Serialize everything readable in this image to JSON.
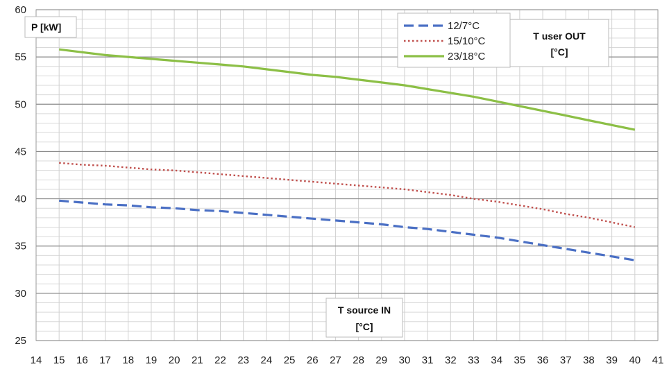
{
  "chart_data": {
    "type": "line",
    "ylabel": "P [kW]",
    "xlabel_line1": "T source IN",
    "xlabel_line2": "[°C]",
    "legend_title_line1": "T user OUT",
    "legend_title_line2": "[°C]",
    "legend_position": "top-right",
    "grid": true,
    "xlim": [
      14,
      41
    ],
    "ylim": [
      25,
      60
    ],
    "x_ticks": [
      14,
      15,
      16,
      17,
      18,
      19,
      20,
      21,
      22,
      23,
      24,
      25,
      26,
      27,
      28,
      29,
      30,
      31,
      32,
      33,
      34,
      35,
      36,
      37,
      38,
      39,
      40,
      41
    ],
    "y_ticks": [
      25,
      30,
      35,
      40,
      45,
      50,
      55,
      60
    ],
    "x": [
      15,
      16,
      17,
      18,
      19,
      20,
      21,
      22,
      23,
      24,
      25,
      26,
      27,
      28,
      29,
      30,
      31,
      32,
      33,
      34,
      35,
      36,
      37,
      38,
      39,
      40
    ],
    "series": [
      {
        "name": "12/7°C",
        "color": "#4a6fc4",
        "style": "dashed",
        "values": [
          39.8,
          39.6,
          39.4,
          39.3,
          39.1,
          39.0,
          38.8,
          38.7,
          38.5,
          38.3,
          38.1,
          37.9,
          37.7,
          37.5,
          37.3,
          37.0,
          36.8,
          36.5,
          36.2,
          35.9,
          35.5,
          35.1,
          34.7,
          34.3,
          33.9,
          33.5
        ]
      },
      {
        "name": "15/10°C",
        "color": "#c0504d",
        "style": "dotted",
        "values": [
          43.8,
          43.6,
          43.5,
          43.3,
          43.1,
          43.0,
          42.8,
          42.6,
          42.4,
          42.2,
          42.0,
          41.8,
          41.6,
          41.4,
          41.2,
          41.0,
          40.7,
          40.4,
          40.0,
          39.7,
          39.3,
          38.9,
          38.4,
          38.0,
          37.5,
          37.0
        ]
      },
      {
        "name": "23/18°C",
        "color": "#8cbf46",
        "style": "solid",
        "values": [
          55.8,
          55.5,
          55.2,
          55.0,
          54.8,
          54.6,
          54.4,
          54.2,
          54.0,
          53.7,
          53.4,
          53.1,
          52.9,
          52.6,
          52.3,
          52.0,
          51.6,
          51.2,
          50.8,
          50.3,
          49.8,
          49.3,
          48.8,
          48.3,
          47.8,
          47.3
        ]
      }
    ]
  }
}
